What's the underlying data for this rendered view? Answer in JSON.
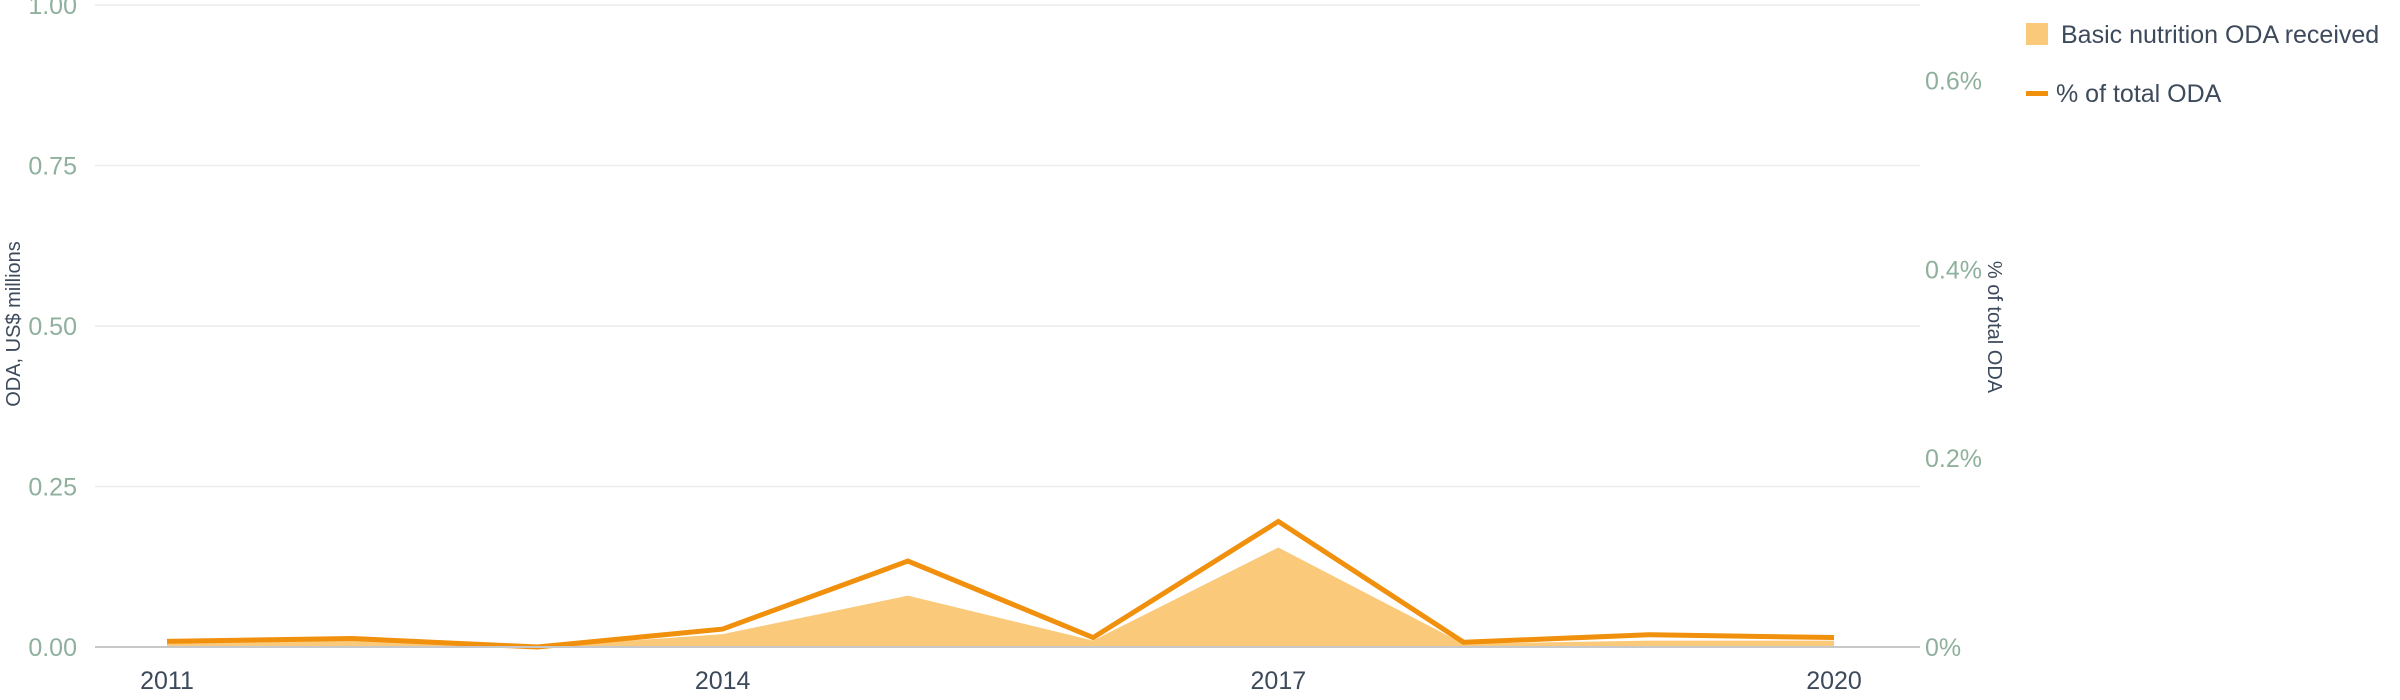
{
  "chart_data": {
    "type": "area+line",
    "categories": [
      "2011",
      "2012",
      "2013",
      "2014",
      "2015",
      "2016",
      "2017",
      "2018",
      "2019",
      "2020"
    ],
    "x_tick_labels": [
      "2011",
      "2014",
      "2017",
      "2020"
    ],
    "series": [
      {
        "name": "Basic nutrition ODA received",
        "type": "area",
        "axis": "left",
        "color": "#fbc97a",
        "values": [
          0.005,
          0.01,
          0.0,
          0.02,
          0.08,
          0.01,
          0.155,
          0.005,
          0.01,
          0.01
        ]
      },
      {
        "name": "% of total ODA",
        "type": "line",
        "axis": "right",
        "color": "#f0900c",
        "values": [
          0.006,
          0.009,
          0.0,
          0.019,
          0.091,
          0.01,
          0.133,
          0.005,
          0.013,
          0.01
        ]
      }
    ],
    "left_axis": {
      "label": "ODA, US$ millions",
      "ylim": [
        0,
        1
      ],
      "ticks": [
        0,
        0.25,
        0.5,
        0.75,
        1
      ],
      "tick_labels": [
        "0.00",
        "0.25",
        "0.50",
        "0.75",
        "1.00"
      ]
    },
    "right_axis": {
      "label": "% of total ODA",
      "ylim": [
        0,
        0.68
      ],
      "ticks": [
        0,
        0.2,
        0.4,
        0.6
      ],
      "tick_labels": [
        "0%",
        "0.2%",
        "0.4%",
        "0.6%"
      ]
    },
    "grid": true,
    "legend_position": "top-right"
  }
}
